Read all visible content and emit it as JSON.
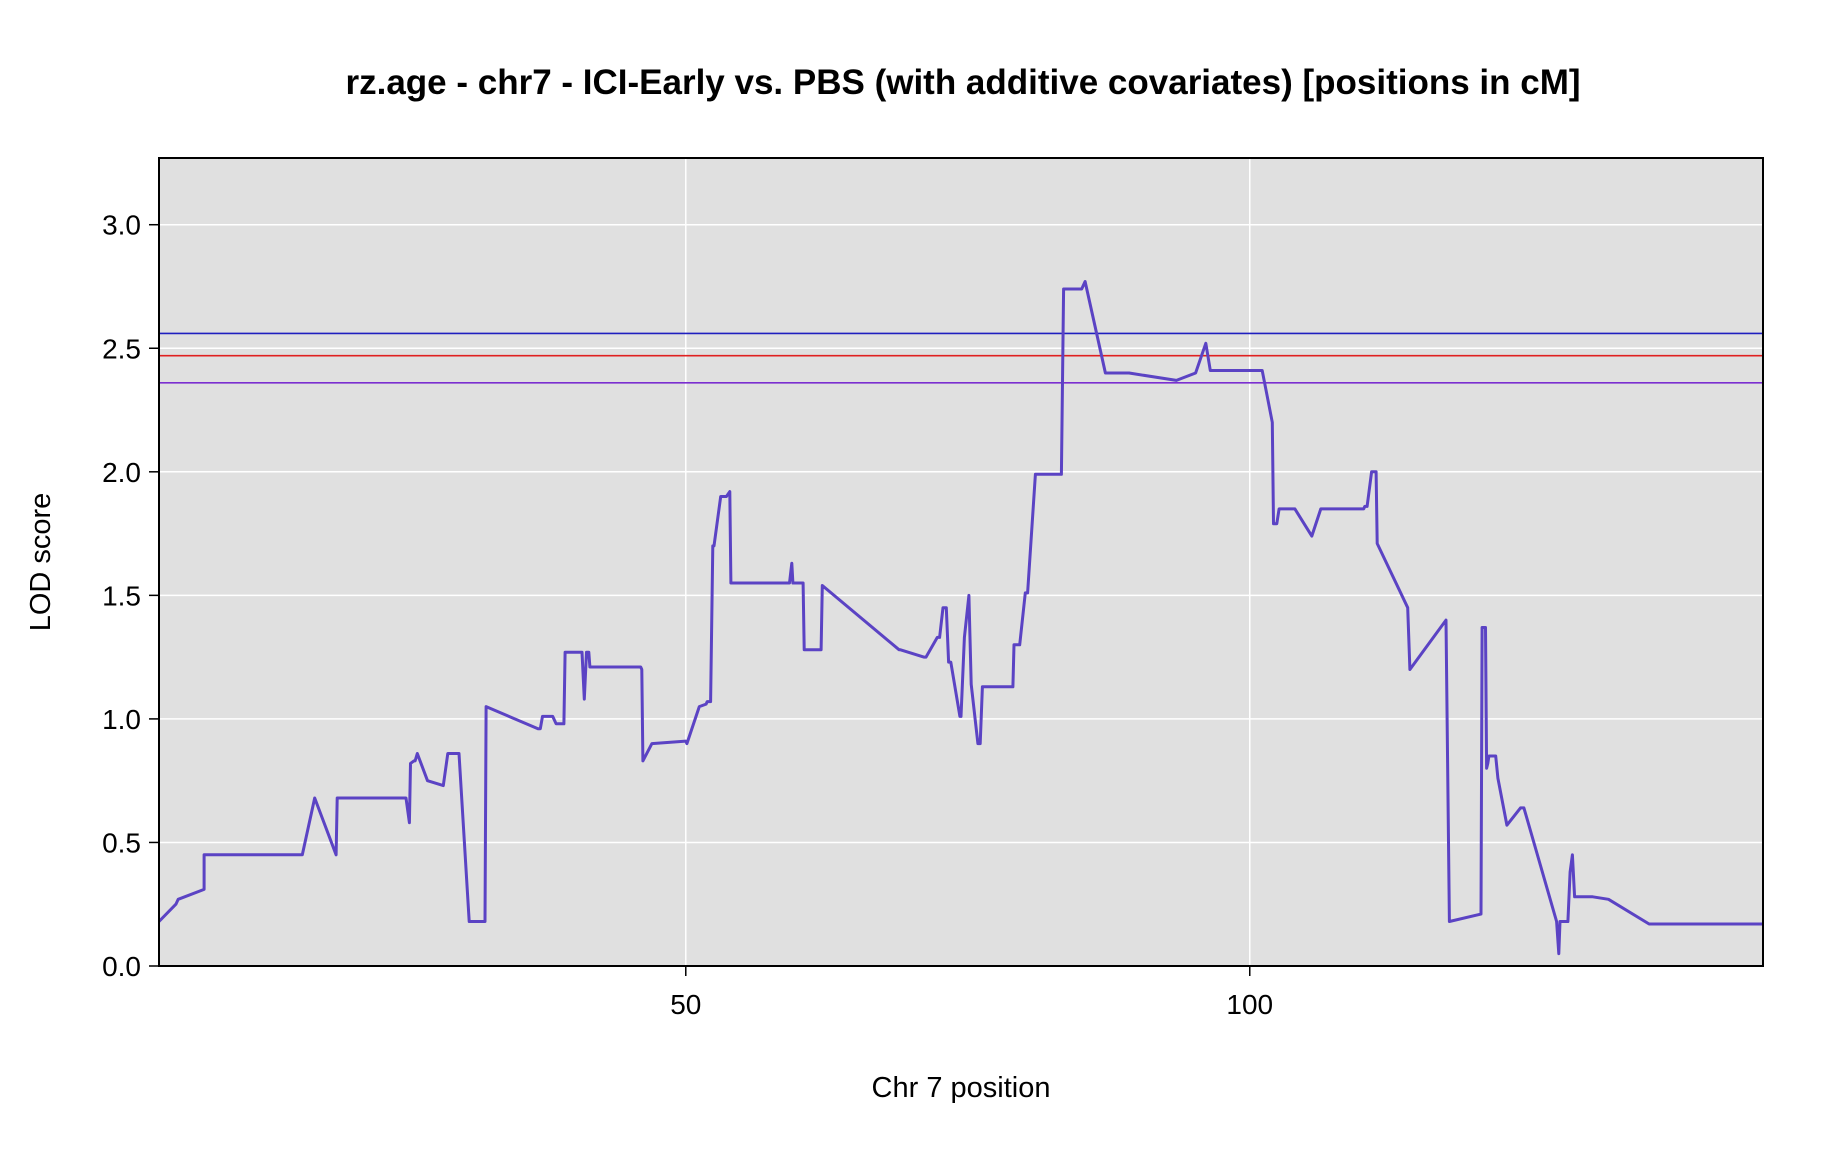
{
  "chart_data": {
    "type": "line",
    "title": "rz.age - chr7 - ICI-Early vs. PBS (with additive covariates) [positions in cM]",
    "xlabel": "Chr 7 position",
    "ylabel": "LOD score",
    "xlim": [
      3.3,
      145.5
    ],
    "ylim": [
      0,
      3.27
    ],
    "xticks": [
      50,
      100
    ],
    "xtick_labels": [
      "50",
      "100"
    ],
    "yticks": [
      0,
      0.5,
      1,
      1.5,
      2,
      2.5,
      3
    ],
    "ytick_labels": [
      "0.0",
      "0.5",
      "1.0",
      "1.5",
      "2.0",
      "2.5",
      "3.0"
    ],
    "grid": true,
    "background": "#e0e0e0",
    "thresholds": [
      {
        "value": 2.56,
        "color": "#1f1fbf"
      },
      {
        "value": 2.47,
        "color": "#e02020"
      },
      {
        "value": 2.36,
        "color": "#7b2fd0"
      }
    ],
    "series": [
      {
        "color": "#5b43c4",
        "x": [
          3.3,
          4.8,
          5.0,
          7.3,
          7.3,
          10.5,
          11.0,
          16.0,
          17.1,
          19.0,
          19.1,
          24.0,
          24.1,
          24.2,
          24.3,
          25.2,
          25.5,
          25.6,
          25.9,
          26.0,
          26.2,
          27.1,
          28.5,
          28.9,
          29.9,
          30.8,
          31.0,
          31.2,
          31.3,
          32.2,
          32.3,
          36.9,
          37.1,
          37.3,
          37.5,
          37.6,
          38.0,
          38.2,
          38.5,
          39.2,
          39.3,
          40.8,
          41.0,
          41.2,
          41.4,
          41.5,
          43.0,
          46.0,
          46.1,
          46.2,
          47.0,
          50.0,
          50.1,
          51.2,
          51.8,
          51.9,
          52.2,
          52.4,
          52.5,
          53.1,
          53.6,
          53.9,
          54.0,
          59.2,
          59.4,
          59.5,
          59.9,
          60.4,
          60.5,
          62.0,
          62.1,
          68.9,
          69.0,
          71.1,
          71.3,
          72.3,
          72.5,
          72.8,
          73.1,
          73.3,
          73.5,
          74.3,
          74.4,
          74.7,
          75.1,
          75.3,
          75.9,
          76.1,
          76.3,
          79.0,
          79.1,
          79.6,
          80.1,
          80.3,
          81.0,
          83.3,
          83.5,
          85.1,
          85.4,
          87.2,
          88.3,
          88.5,
          89.0,
          89.3,
          93.5,
          95.2,
          96.1,
          96.5,
          98.0,
          98.2,
          101.1,
          102.0,
          102.1,
          102.4,
          102.6,
          102.9,
          103.7,
          104.0,
          105.5,
          106.3,
          110.1,
          110.2,
          110.4,
          110.8,
          111.0,
          111.2,
          111.3,
          114.0,
          114.2,
          117.4,
          117.7,
          120.5,
          120.6,
          120.9,
          121.0,
          121.1,
          121.2,
          121.8,
          122.0,
          122.8,
          124.0,
          124.3,
          127.2,
          127.4,
          127.5,
          128.2,
          128.4,
          128.6,
          128.8,
          129.5,
          130.4,
          131.8,
          135.4,
          135.5,
          137.2,
          137.5,
          138.2,
          138.5,
          140.8,
          141.0,
          141.2,
          141.3,
          142.9,
          145.0,
          145.5
        ],
        "y": [
          0.18,
          0.25,
          0.27,
          0.31,
          0.45,
          0.45,
          0.45,
          0.45,
          0.68,
          0.45,
          0.68,
          0.68,
          0.68,
          0.68,
          0.68,
          0.68,
          0.58,
          0.82,
          0.83,
          0.83,
          0.86,
          0.75,
          0.73,
          0.86,
          0.86,
          0.18,
          0.18,
          0.18,
          0.18,
          0.18,
          1.05,
          0.96,
          0.96,
          1.01,
          1.01,
          1.01,
          1.01,
          1.01,
          0.98,
          0.98,
          1.27,
          1.27,
          1.08,
          1.27,
          1.27,
          1.21,
          1.21,
          1.21,
          1.2,
          0.83,
          0.9,
          0.91,
          0.9,
          1.05,
          1.06,
          1.07,
          1.07,
          1.7,
          1.7,
          1.9,
          1.9,
          1.92,
          1.55,
          1.55,
          1.63,
          1.55,
          1.55,
          1.55,
          1.28,
          1.28,
          1.54,
          1.28,
          1.28,
          1.25,
          1.25,
          1.33,
          1.33,
          1.45,
          1.45,
          1.23,
          1.23,
          1.01,
          1.01,
          1.33,
          1.5,
          1.14,
          0.9,
          0.9,
          1.13,
          1.13,
          1.3,
          1.3,
          1.51,
          1.51,
          1.99,
          1.99,
          2.74,
          2.74,
          2.77,
          2.4,
          2.4,
          2.4,
          2.4,
          2.4,
          2.37,
          2.4,
          2.52,
          2.41,
          2.41,
          2.41,
          2.41,
          2.2,
          1.79,
          1.79,
          1.85,
          1.85,
          1.85,
          1.85,
          1.74,
          1.85,
          1.85,
          1.86,
          1.86,
          2.0,
          2.0,
          2.0,
          1.71,
          1.45,
          1.2,
          1.4,
          0.18,
          0.21,
          1.37,
          1.37,
          0.8,
          0.82,
          0.85,
          0.85,
          0.76,
          0.57,
          0.64,
          0.64,
          0.18,
          0.05,
          0.18,
          0.18,
          0.38,
          0.45,
          0.28,
          0.28,
          0.28,
          0.27,
          0.17,
          0.17,
          0.17,
          0.17,
          0.17,
          0.17,
          0.17,
          0.17,
          0.17,
          0.17,
          0.17,
          0.17,
          0.17
        ]
      }
    ]
  }
}
